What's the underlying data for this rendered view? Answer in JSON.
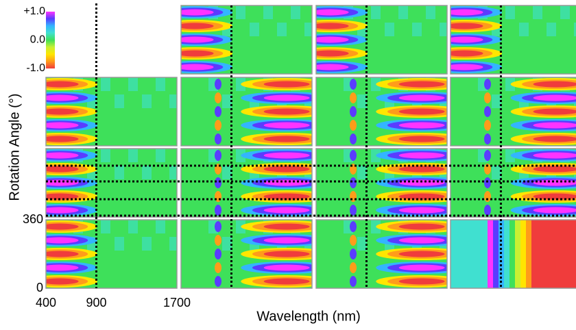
{
  "chart_data": {
    "type": "heatmap",
    "xlabel": "Wavelength (nm)",
    "ylabel": "Rotation Angle (°)",
    "xlim": [
      400,
      1700
    ],
    "xticks": [
      400,
      900,
      1700
    ],
    "ylim": [
      0,
      360
    ],
    "yticks": [
      0,
      360
    ],
    "colorbar": {
      "lim": [
        -1,
        1
      ],
      "ticks": [
        {
          "value": 1,
          "label": "+1.0"
        },
        {
          "value": 0,
          "label": "0.0"
        },
        {
          "value": -1,
          "label": "-1.0"
        }
      ],
      "colors": [
        "#ff33ff",
        "#5a3cff",
        "#33b5ff",
        "#40e0d0",
        "#3ee05a",
        "#c8f032",
        "#ffe600",
        "#ff9c1a",
        "#f03c3c"
      ]
    },
    "marker_x": 900
  }
}
